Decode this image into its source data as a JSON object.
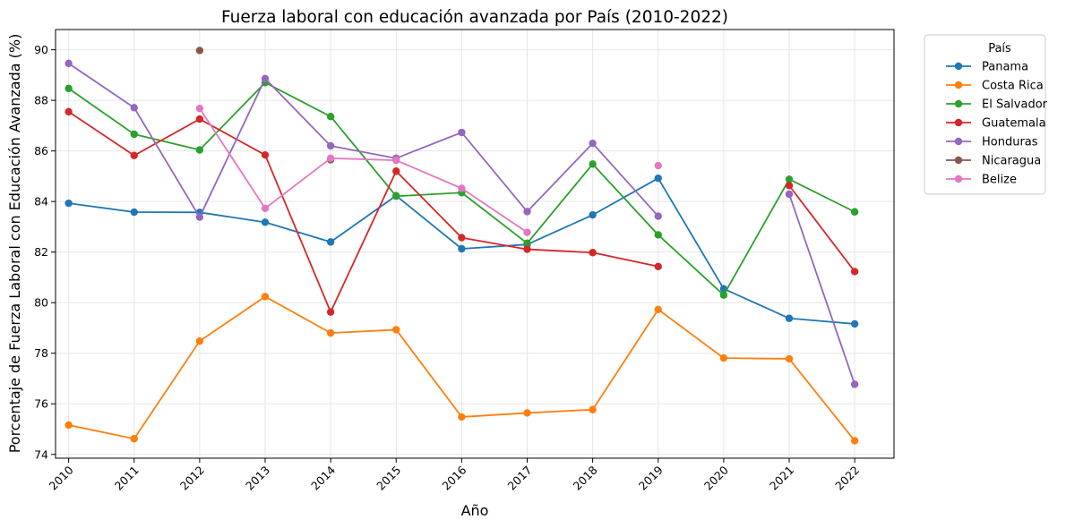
{
  "chart_data": {
    "type": "line",
    "title": "Fuerza laboral con educación avanzada por País (2010-2022)",
    "xlabel": "Año",
    "ylabel": "Porcentaje de Fuerza Laboral con Educación Avanzada (%)",
    "x": [
      2010,
      2011,
      2012,
      2013,
      2014,
      2015,
      2016,
      2017,
      2018,
      2019,
      2020,
      2021,
      2022
    ],
    "xlim": [
      2009.8,
      2022.6
    ],
    "ylim": [
      73.85,
      90.8
    ],
    "yticks": [
      74,
      76,
      78,
      80,
      82,
      84,
      86,
      88,
      90
    ],
    "grid": true,
    "legend": {
      "title": "País",
      "placement": "outside-top-right"
    },
    "series": [
      {
        "name": "Panama",
        "color": "#1f77b4",
        "values": [
          83.93,
          83.58,
          83.57,
          83.18,
          82.4,
          84.23,
          82.13,
          82.3,
          83.47,
          84.92,
          80.55,
          79.38,
          79.16
        ]
      },
      {
        "name": "Costa Rica",
        "color": "#ff7f0e",
        "values": [
          75.16,
          74.62,
          78.48,
          80.24,
          78.8,
          78.93,
          75.48,
          75.64,
          75.77,
          79.73,
          77.81,
          77.78,
          74.54
        ]
      },
      {
        "name": "El Salvador",
        "color": "#2ca02c",
        "values": [
          88.47,
          86.66,
          86.04,
          88.7,
          87.36,
          84.21,
          84.35,
          82.35,
          85.48,
          82.68,
          80.3,
          84.88,
          83.59
        ]
      },
      {
        "name": "Guatemala",
        "color": "#d62728",
        "values": [
          87.55,
          85.82,
          87.26,
          85.84,
          79.63,
          85.2,
          82.57,
          82.11,
          81.98,
          81.43,
          null,
          84.63,
          81.23
        ]
      },
      {
        "name": "Honduras",
        "color": "#9467bd",
        "values": [
          89.46,
          87.71,
          83.38,
          88.86,
          86.2,
          85.71,
          86.73,
          83.6,
          86.3,
          83.42,
          null,
          84.29,
          76.77
        ]
      },
      {
        "name": "Nicaragua",
        "color": "#8c564b",
        "values": [
          null,
          null,
          89.97,
          null,
          85.65,
          null,
          null,
          null,
          null,
          null,
          null,
          null,
          null
        ]
      },
      {
        "name": "Belize",
        "color": "#e377c2",
        "values": [
          null,
          null,
          87.68,
          83.73,
          85.71,
          85.63,
          84.52,
          82.78,
          null,
          85.42,
          null,
          null,
          null
        ]
      }
    ]
  }
}
